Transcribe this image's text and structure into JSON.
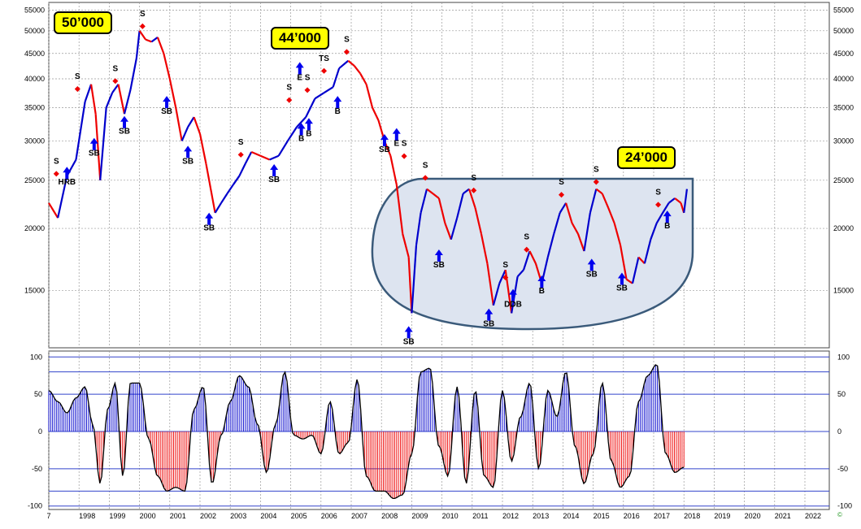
{
  "chart_data": [
    {
      "type": "line",
      "title": "",
      "xlabel": "",
      "ylabel": "",
      "x_ticks": [
        "7",
        "1998",
        "1999",
        "2000",
        "2001",
        "2002",
        "2003",
        "2004",
        "2005",
        "2006",
        "2007",
        "2008",
        "2009",
        "2010",
        "2011",
        "2012",
        "2013",
        "2014",
        "2015",
        "2016",
        "2017",
        "2018",
        "2019",
        "2020",
        "2021",
        "2022"
      ],
      "y_ticks": [
        15000,
        20000,
        25000,
        30000,
        35000,
        40000,
        45000,
        50000,
        55000
      ],
      "y_scale": "log",
      "xlim": [
        1997.0,
        2023.0
      ],
      "ylim": [
        11500,
        57000
      ],
      "grid": true,
      "colors": {
        "up": "#0000cc",
        "down": "#ee0000",
        "signal": "#ee0000",
        "arrow": "#0000ee",
        "highlight": "#dde4f0"
      },
      "series": [
        {
          "x": [
            1997.0,
            1997.3,
            1997.6,
            1997.9,
            1998.2,
            1998.4,
            1998.55,
            1998.7,
            1998.9,
            1999.1,
            1999.3,
            1999.5,
            1999.7,
            1999.9,
            2000.0,
            2000.2,
            2000.4,
            2000.6,
            2000.8,
            2001.0,
            2001.2,
            2001.4,
            2001.6,
            2001.8,
            2002.0,
            2002.2,
            2002.5,
            2002.7,
            2002.9,
            2003.1,
            2003.3,
            2003.5,
            2003.7,
            2004.0,
            2004.3,
            2004.6,
            2004.9,
            2005.2,
            2005.5,
            2005.8,
            2006.1,
            2006.4,
            2006.6,
            2006.9,
            2007.1,
            2007.3,
            2007.5,
            2007.7,
            2007.9,
            2008.1,
            2008.3,
            2008.5,
            2008.7,
            2008.9,
            2009.0,
            2009.15,
            2009.3,
            2009.5,
            2009.7,
            2009.9,
            2010.1,
            2010.3,
            2010.5,
            2010.7,
            2010.9,
            2011.1,
            2011.3,
            2011.5,
            2011.7,
            2011.9,
            2012.1,
            2012.3,
            2012.5,
            2012.7,
            2012.9,
            2013.1,
            2013.3,
            2013.5,
            2013.7,
            2013.9,
            2014.1,
            2014.3,
            2014.5,
            2014.7,
            2014.9,
            2015.1,
            2015.3,
            2015.5,
            2015.7,
            2015.9,
            2016.1,
            2016.3,
            2016.5,
            2016.7,
            2016.9,
            2017.1,
            2017.3,
            2017.5,
            2017.7,
            2017.9,
            2018.0,
            2018.1
          ],
          "values": [
            22500,
            21000,
            25500,
            27500,
            36000,
            39000,
            34000,
            25000,
            35000,
            37500,
            39000,
            34000,
            38000,
            44000,
            50000,
            48000,
            47500,
            48500,
            45000,
            40000,
            35000,
            30000,
            32000,
            33500,
            31000,
            27000,
            21500,
            22500,
            23500,
            24500,
            25500,
            27000,
            28500,
            28000,
            27500,
            28000,
            30000,
            32000,
            33500,
            36500,
            37500,
            38500,
            42000,
            43500,
            42500,
            41000,
            39000,
            35000,
            33000,
            30000,
            28000,
            24500,
            19500,
            17500,
            13500,
            18500,
            21500,
            24000,
            23500,
            23000,
            20500,
            19000,
            21000,
            23500,
            24000,
            22000,
            19500,
            17000,
            14000,
            15500,
            16500,
            13500,
            16000,
            16500,
            18000,
            17000,
            15500,
            17500,
            19500,
            21500,
            22500,
            20500,
            19500,
            18000,
            21500,
            24000,
            23500,
            22000,
            20500,
            18500,
            15800,
            15500,
            17500,
            17000,
            19000,
            20500,
            21500,
            22500,
            23000,
            22500,
            21500,
            24000
          ]
        }
      ],
      "annotations": [
        {
          "text": "S",
          "x": 1997.25,
          "y": 27000
        },
        {
          "text": "HRB",
          "x": 1997.6,
          "y": 24500
        },
        {
          "text": "S",
          "x": 1997.95,
          "y": 40000
        },
        {
          "text": "SB",
          "x": 1998.5,
          "y": 28000
        },
        {
          "text": "S",
          "x": 1999.2,
          "y": 41500
        },
        {
          "text": "SB",
          "x": 1999.5,
          "y": 31000
        },
        {
          "text": "S",
          "x": 2000.1,
          "y": 53500
        },
        {
          "text": "SB",
          "x": 2000.9,
          "y": 34000
        },
        {
          "text": "SB",
          "x": 2001.6,
          "y": 27000
        },
        {
          "text": "SB",
          "x": 2002.3,
          "y": 19800
        },
        {
          "text": "S",
          "x": 2003.35,
          "y": 29500
        },
        {
          "text": "SB",
          "x": 2004.45,
          "y": 24800
        },
        {
          "text": "S",
          "x": 2004.95,
          "y": 38000
        },
        {
          "text": "E",
          "x": 2005.3,
          "y": 39800
        },
        {
          "text": "S",
          "x": 2005.55,
          "y": 39800
        },
        {
          "text": "B",
          "x": 2005.35,
          "y": 30000
        },
        {
          "text": "B",
          "x": 2005.6,
          "y": 30700
        },
        {
          "text": "TS",
          "x": 2006.1,
          "y": 43500
        },
        {
          "text": "B",
          "x": 2006.55,
          "y": 34000
        },
        {
          "text": "S",
          "x": 2006.85,
          "y": 47500
        },
        {
          "text": "SB",
          "x": 2008.1,
          "y": 28500
        },
        {
          "text": "E",
          "x": 2008.5,
          "y": 29300
        },
        {
          "text": "S",
          "x": 2008.75,
          "y": 29300
        },
        {
          "text": "S",
          "x": 2009.45,
          "y": 26500
        },
        {
          "text": "SB",
          "x": 2009.9,
          "y": 16700
        },
        {
          "text": "SB",
          "x": 2008.9,
          "y": 11700
        },
        {
          "text": "S",
          "x": 2011.05,
          "y": 25000
        },
        {
          "text": "SB",
          "x": 2011.55,
          "y": 12700
        },
        {
          "text": "S",
          "x": 2012.1,
          "y": 16700
        },
        {
          "text": "DDB",
          "x": 2012.35,
          "y": 13900
        },
        {
          "text": "S",
          "x": 2012.8,
          "y": 19000
        },
        {
          "text": "B",
          "x": 2013.3,
          "y": 14800
        },
        {
          "text": "S",
          "x": 2013.95,
          "y": 24500
        },
        {
          "text": "SB",
          "x": 2014.95,
          "y": 16000
        },
        {
          "text": "S",
          "x": 2015.1,
          "y": 26000
        },
        {
          "text": "SB",
          "x": 2015.95,
          "y": 15000
        },
        {
          "text": "S",
          "x": 2017.15,
          "y": 23400
        },
        {
          "text": "B",
          "x": 2017.45,
          "y": 20000
        }
      ]
    },
    {
      "type": "bar",
      "title": "",
      "y_ticks": [
        -100,
        -50,
        0,
        50,
        100
      ],
      "ylim": [
        -100,
        100
      ],
      "x": [
        1997.0,
        1997.3,
        1997.6,
        1997.9,
        1998.2,
        1998.45,
        1998.7,
        1998.95,
        1999.2,
        1999.45,
        1999.7,
        2000.0,
        2000.3,
        2000.6,
        2000.9,
        2001.2,
        2001.5,
        2001.8,
        2002.1,
        2002.4,
        2002.7,
        2003.0,
        2003.3,
        2003.6,
        2003.9,
        2004.2,
        2004.5,
        2004.8,
        2005.1,
        2005.4,
        2005.7,
        2006.0,
        2006.3,
        2006.6,
        2006.9,
        2007.2,
        2007.5,
        2007.8,
        2008.1,
        2008.4,
        2008.7,
        2009.0,
        2009.3,
        2009.6,
        2009.9,
        2010.2,
        2010.5,
        2010.8,
        2011.1,
        2011.4,
        2011.7,
        2012.0,
        2012.3,
        2012.6,
        2012.9,
        2013.2,
        2013.5,
        2013.8,
        2014.1,
        2014.4,
        2014.7,
        2015.0,
        2015.3,
        2015.6,
        2015.9,
        2016.2,
        2016.5,
        2016.8,
        2017.1,
        2017.4,
        2017.7,
        2018.0
      ],
      "values": [
        55,
        40,
        25,
        45,
        60,
        10,
        -70,
        30,
        65,
        -60,
        65,
        65,
        -10,
        -60,
        -80,
        -75,
        -80,
        30,
        60,
        -70,
        -5,
        40,
        75,
        60,
        10,
        -55,
        10,
        80,
        -5,
        -10,
        -5,
        -30,
        40,
        -30,
        -15,
        70,
        -60,
        -80,
        -80,
        -90,
        -85,
        -30,
        80,
        85,
        -20,
        -60,
        60,
        -70,
        55,
        -60,
        -75,
        55,
        -40,
        20,
        65,
        -50,
        55,
        20,
        80,
        -20,
        -70,
        -30,
        65,
        -40,
        -75,
        -60,
        40,
        75,
        90,
        -30,
        -55,
        -48
      ]
    }
  ],
  "callouts": [
    {
      "text": "50’000"
    },
    {
      "text": "44’000"
    },
    {
      "text": "24’000"
    }
  ],
  "watermark": "©"
}
